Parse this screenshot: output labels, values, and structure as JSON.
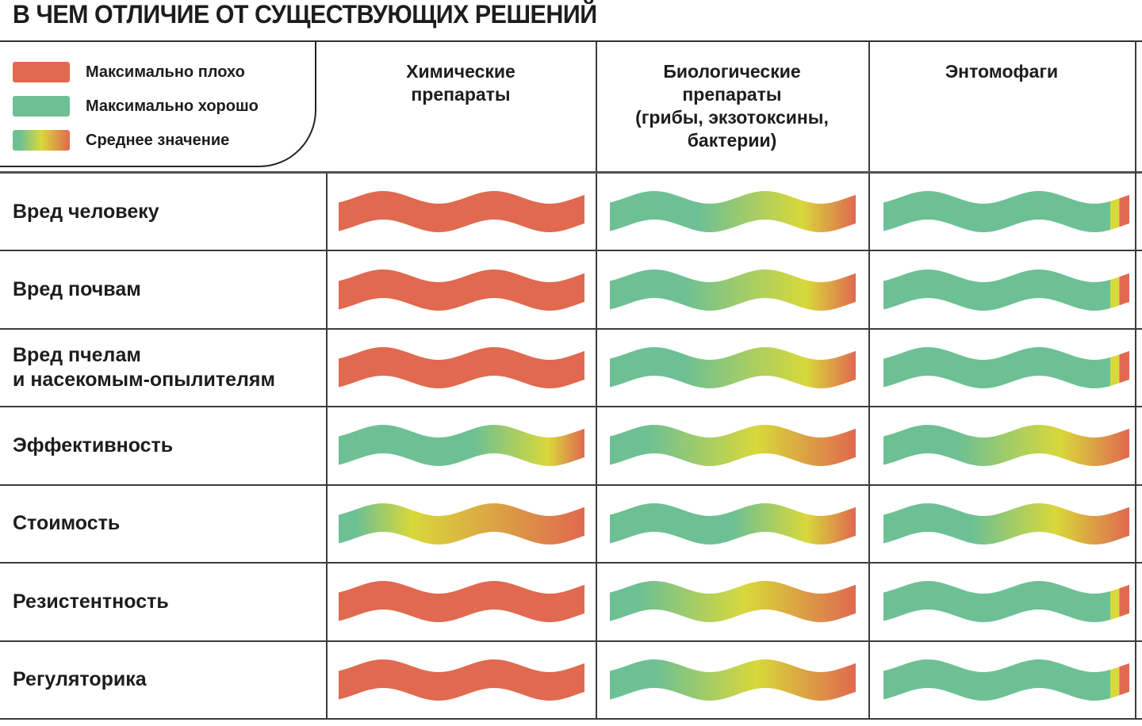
{
  "title": "В ЧЕМ ОТЛИЧИЕ ОТ СУЩЕСТВУЮЩИХ РЕШЕНИЙ",
  "colors": {
    "bad": "#E0694F",
    "good": "#6DC094",
    "mid": "#D8D83A",
    "line": "#3c3c3c",
    "text": "#1d1d1d"
  },
  "legend": {
    "items": [
      {
        "label": "Максимально плохо",
        "swatch": [
          [
            0,
            "bad"
          ],
          [
            1,
            "bad"
          ]
        ]
      },
      {
        "label": "Максимально хорошо",
        "swatch": [
          [
            0,
            "good"
          ],
          [
            1,
            "good"
          ]
        ]
      },
      {
        "label": "Среднее значение",
        "swatch": [
          [
            0,
            "good"
          ],
          [
            0.12,
            "good"
          ],
          [
            0.5,
            "mid"
          ],
          [
            1,
            "bad"
          ]
        ]
      }
    ]
  },
  "columns": [
    "Химические\nпрепараты",
    "Биологические\nпрепараты\n(грибы, экзотоксины,\nбактерии)",
    "Энтомофаги"
  ],
  "rows": [
    {
      "label": "Вред человеку",
      "cells": [
        [
          [
            0,
            "bad"
          ],
          [
            1,
            "bad"
          ]
        ],
        [
          [
            0,
            "good"
          ],
          [
            0.36,
            "good"
          ],
          [
            0.78,
            "mid"
          ],
          [
            1,
            "bad"
          ]
        ],
        [
          [
            0,
            "good"
          ],
          [
            0.922,
            "good"
          ],
          [
            0.922,
            "mid"
          ],
          [
            0.96,
            "mid"
          ],
          [
            0.96,
            "bad"
          ],
          [
            1,
            "bad"
          ]
        ]
      ]
    },
    {
      "label": "Вред почвам",
      "cells": [
        [
          [
            0,
            "bad"
          ],
          [
            1,
            "bad"
          ]
        ],
        [
          [
            0,
            "good"
          ],
          [
            0.3,
            "good"
          ],
          [
            0.8,
            "mid"
          ],
          [
            1,
            "bad"
          ]
        ],
        [
          [
            0,
            "good"
          ],
          [
            0.922,
            "good"
          ],
          [
            0.922,
            "mid"
          ],
          [
            0.96,
            "mid"
          ],
          [
            0.96,
            "bad"
          ],
          [
            1,
            "bad"
          ]
        ]
      ]
    },
    {
      "label": "Вред пчелам\nи насекомым-опылителям",
      "cells": [
        [
          [
            0,
            "bad"
          ],
          [
            1,
            "bad"
          ]
        ],
        [
          [
            0,
            "good"
          ],
          [
            0.3,
            "good"
          ],
          [
            0.8,
            "mid"
          ],
          [
            1,
            "bad"
          ]
        ],
        [
          [
            0,
            "good"
          ],
          [
            0.922,
            "good"
          ],
          [
            0.922,
            "mid"
          ],
          [
            0.96,
            "mid"
          ],
          [
            0.96,
            "bad"
          ],
          [
            1,
            "bad"
          ]
        ]
      ]
    },
    {
      "label": "Эффективность",
      "cells": [
        [
          [
            0,
            "good"
          ],
          [
            0.55,
            "good"
          ],
          [
            0.85,
            "mid"
          ],
          [
            1,
            "bad"
          ]
        ],
        [
          [
            0,
            "good"
          ],
          [
            0.15,
            "good"
          ],
          [
            0.6,
            "mid"
          ],
          [
            1,
            "bad"
          ]
        ],
        [
          [
            0,
            "good"
          ],
          [
            0.3,
            "good"
          ],
          [
            0.72,
            "mid"
          ],
          [
            1,
            "bad"
          ]
        ]
      ]
    },
    {
      "label": "Стоимость",
      "cells": [
        [
          [
            0,
            "good"
          ],
          [
            0.07,
            "good"
          ],
          [
            0.3,
            "mid"
          ],
          [
            1,
            "bad"
          ]
        ],
        [
          [
            0,
            "good"
          ],
          [
            0.5,
            "good"
          ],
          [
            0.8,
            "mid"
          ],
          [
            1,
            "bad"
          ]
        ],
        [
          [
            0,
            "good"
          ],
          [
            0.36,
            "good"
          ],
          [
            0.7,
            "mid"
          ],
          [
            1,
            "bad"
          ]
        ]
      ]
    },
    {
      "label": "Резистентность",
      "cells": [
        [
          [
            0,
            "bad"
          ],
          [
            1,
            "bad"
          ]
        ],
        [
          [
            0,
            "good"
          ],
          [
            0.12,
            "good"
          ],
          [
            0.55,
            "mid"
          ],
          [
            1,
            "bad"
          ]
        ],
        [
          [
            0,
            "good"
          ],
          [
            0.922,
            "good"
          ],
          [
            0.922,
            "mid"
          ],
          [
            0.96,
            "mid"
          ],
          [
            0.96,
            "bad"
          ],
          [
            1,
            "bad"
          ]
        ]
      ]
    },
    {
      "label": "Регуляторика",
      "cells": [
        [
          [
            0,
            "bad"
          ],
          [
            1,
            "bad"
          ]
        ],
        [
          [
            0,
            "good"
          ],
          [
            0.18,
            "good"
          ],
          [
            0.6,
            "mid"
          ],
          [
            1,
            "bad"
          ]
        ],
        [
          [
            0,
            "good"
          ],
          [
            0.922,
            "good"
          ],
          [
            0.922,
            "mid"
          ],
          [
            0.96,
            "mid"
          ],
          [
            0.96,
            "bad"
          ],
          [
            1,
            "bad"
          ]
        ]
      ]
    }
  ],
  "chart_data": {
    "type": "table",
    "title": "В ЧЕМ ОТЛИЧИЕ ОТ СУЩЕСТВУЮЩИХ РЕШЕНИЙ",
    "columns": [
      "Химические препараты",
      "Биологические препараты (грибы, экзотоксины, бактерии)",
      "Энтомофаги"
    ],
    "rows": [
      "Вред человеку",
      "Вред почвам",
      "Вред пчелам и насекомым-опылителям",
      "Эффективность",
      "Стоимость",
      "Резистентность",
      "Регуляторика"
    ],
    "values": [
      [
        "максимально плохо",
        "среднее: от хорошо к плохо",
        "максимально хорошо"
      ],
      [
        "максимально плохо",
        "среднее: от хорошо к плохо",
        "максимально хорошо"
      ],
      [
        "максимально плохо",
        "среднее: от хорошо к плохо",
        "максимально хорошо"
      ],
      [
        "хорошо, к концу среднее/плохо",
        "среднее: от хорошо к плохо",
        "хорошо, к концу среднее/плохо"
      ],
      [
        "плохо, хорошо лишь в начале",
        "хорошо, к концу среднее/плохо",
        "хорошо, к концу среднее/плохо"
      ],
      [
        "максимально плохо",
        "среднее: от хорошо к плохо",
        "максимально хорошо"
      ],
      [
        "максимально плохо",
        "среднее: от хорошо к плохо",
        "максимально хорошо"
      ]
    ],
    "legend_mapping": {
      "максимально плохо": "#E0694F",
      "максимально хорошо": "#6DC094",
      "среднее значение": "градиент зелёный→жёлтый→красный"
    }
  }
}
